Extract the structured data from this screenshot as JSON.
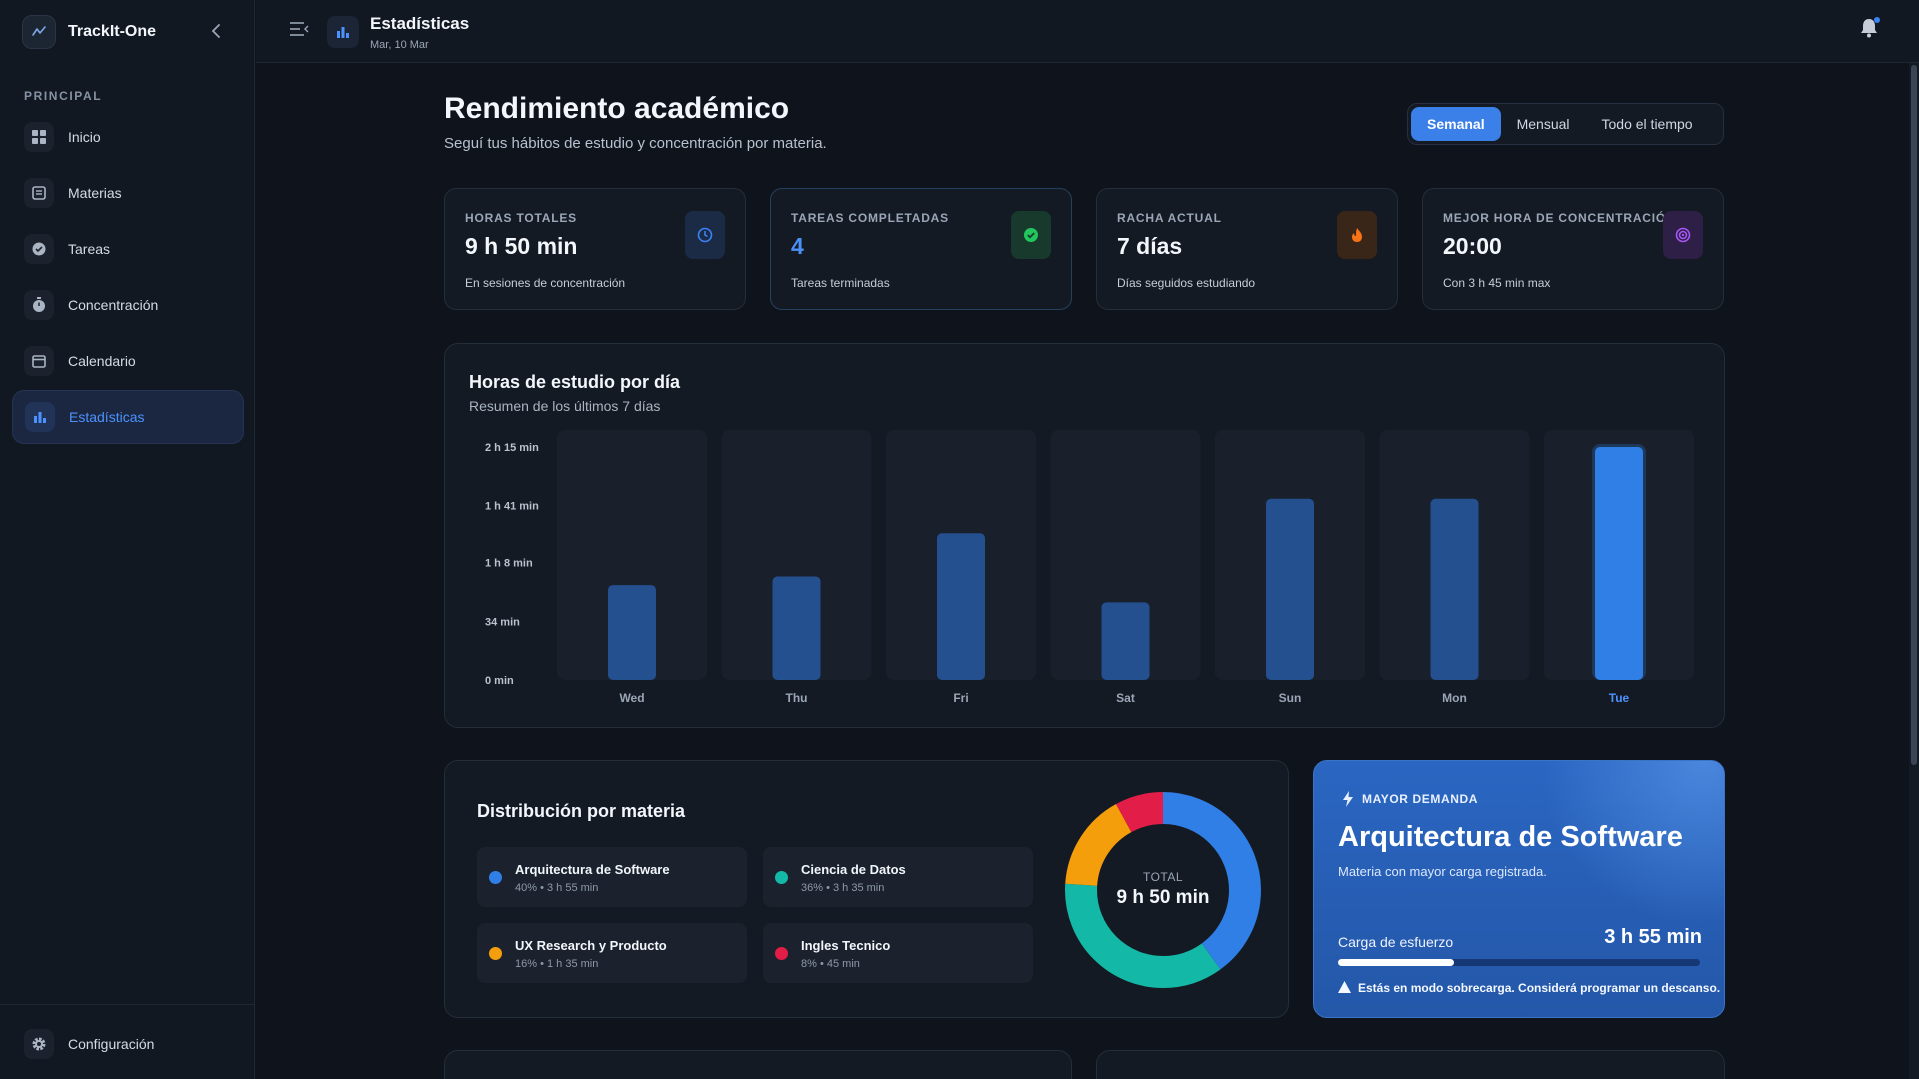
{
  "app": {
    "name": "TrackIt-One"
  },
  "sidebar": {
    "section_label": "PRINCIPAL",
    "items": [
      {
        "label": "Inicio",
        "icon": "dashboard-icon",
        "active": false
      },
      {
        "label": "Materias",
        "icon": "book-icon",
        "active": false
      },
      {
        "label": "Tareas",
        "icon": "check-circle-icon",
        "active": false
      },
      {
        "label": "Concentración",
        "icon": "timer-icon",
        "active": false
      },
      {
        "label": "Calendario",
        "icon": "calendar-icon",
        "active": false
      },
      {
        "label": "Estadísticas",
        "icon": "bar-chart-icon",
        "active": true
      }
    ],
    "footer_item": {
      "label": "Configuración",
      "icon": "gear-icon"
    }
  },
  "header": {
    "title": "Estadísticas",
    "date": "Mar, 10 Mar"
  },
  "main": {
    "title": "Rendimiento académico",
    "subtitle": "Seguí tus hábitos de estudio y concentración por materia.",
    "range_tabs": [
      {
        "label": "Semanal",
        "active": true
      },
      {
        "label": "Mensual",
        "active": false
      },
      {
        "label": "Todo el tiempo",
        "active": false
      }
    ],
    "stats": [
      {
        "label": "HORAS TOTALES",
        "value": "9 h 50 min",
        "note": "En sesiones de concentración",
        "icon": "clock-icon",
        "color": "#3b82f6"
      },
      {
        "label": "TAREAS COMPLETADAS",
        "value": "4",
        "note": "Tareas terminadas",
        "icon": "check-circle-icon",
        "color": "#22c55e"
      },
      {
        "label": "RACHA ACTUAL",
        "value": "7 días",
        "note": "Días seguidos estudiando",
        "icon": "flame-icon",
        "color": "#f97316"
      },
      {
        "label": "MEJOR HORA DE CONCENTRACIÓN",
        "value": "20:00",
        "note": "Con 3 h 45 min max",
        "icon": "target-icon",
        "color": "#a855f7"
      }
    ]
  },
  "chart_data": {
    "type": "bar",
    "title": "Horas de estudio por día",
    "subtitle": "Resumen de los últimos 7 días",
    "categories": [
      "Wed",
      "Thu",
      "Fri",
      "Sat",
      "Sun",
      "Mon",
      "Tue"
    ],
    "values": [
      55,
      60,
      85,
      45,
      105,
      105,
      135
    ],
    "unit": "min",
    "ylim": [
      0,
      135
    ],
    "y_ticks": [
      {
        "value": 0,
        "label": "0 min"
      },
      {
        "value": 34,
        "label": "34 min"
      },
      {
        "value": 68,
        "label": "1 h 8 min"
      },
      {
        "value": 101,
        "label": "1 h 41 min"
      },
      {
        "value": 135,
        "label": "2 h 15 min"
      }
    ],
    "highlight": "Tue",
    "colors": {
      "bar": "#24508f",
      "highlight": "#2f7fe6"
    }
  },
  "distribution": {
    "title": "Distribución por materia",
    "total_label": "TOTAL",
    "total_value": "9 h 50 min",
    "subjects": [
      {
        "name": "Arquitectura de Software",
        "percent": 40,
        "meta": "40% • 3 h 55 min",
        "color": "#2f7fe6"
      },
      {
        "name": "Ciencia de Datos",
        "percent": 36,
        "meta": "36% • 3 h 35 min",
        "color": "#14b8a6"
      },
      {
        "name": "UX Research y Producto",
        "percent": 16,
        "meta": "16% • 1 h 35 min",
        "color": "#f59e0b"
      },
      {
        "name": "Ingles Tecnico",
        "percent": 8,
        "meta": "8% • 45 min",
        "color": "#e11d48"
      }
    ]
  },
  "demand": {
    "tag": "MAYOR DEMANDA",
    "subject": "Arquitectura de Software",
    "subtitle": "Materia con mayor carga registrada.",
    "load_label": "Carga de esfuerzo",
    "load_value": "3 h 55 min",
    "load_fraction": 0.32,
    "warning": "Estás en modo sobrecarga. Considerá programar un descanso."
  }
}
